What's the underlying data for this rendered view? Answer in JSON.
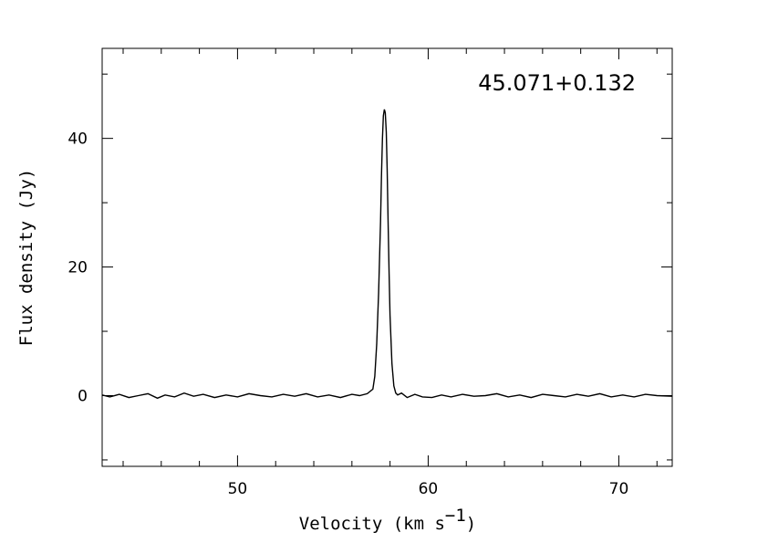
{
  "chart_data": {
    "type": "line",
    "title": "45.071+0.132",
    "xlabel": "Velocity (km s",
    "xlabel_superscript": "−1",
    "xlabel_close": ")",
    "ylabel": "Flux density (Jy)",
    "xlim": [
      42.9,
      72.8
    ],
    "ylim": [
      -11,
      54
    ],
    "xticks": [
      50,
      60,
      70
    ],
    "yticks": [
      0,
      20,
      40
    ],
    "xtick_labels": [
      "50",
      "60",
      "70"
    ],
    "ytick_labels": [
      "0",
      "20",
      "40"
    ],
    "grid": false,
    "series": [
      {
        "line_color": "#000000",
        "x": [
          42.9,
          43.3,
          43.8,
          44.3,
          44.8,
          45.3,
          45.8,
          46.2,
          46.7,
          47.2,
          47.7,
          48.2,
          48.8,
          49.4,
          50.0,
          50.6,
          51.2,
          51.8,
          52.4,
          53.0,
          53.6,
          54.2,
          54.8,
          55.4,
          56.0,
          56.4,
          56.8,
          57.1,
          57.2,
          57.3,
          57.4,
          57.5,
          57.55,
          57.6,
          57.65,
          57.7,
          57.75,
          57.8,
          57.85,
          57.9,
          57.95,
          58.0,
          58.1,
          58.2,
          58.3,
          58.4,
          58.6,
          58.9,
          59.3,
          59.7,
          60.2,
          60.7,
          61.2,
          61.8,
          62.4,
          63.0,
          63.6,
          64.2,
          64.8,
          65.4,
          66.0,
          66.6,
          67.2,
          67.8,
          68.4,
          69.0,
          69.6,
          70.2,
          70.8,
          71.4,
          72.0,
          72.8
        ],
        "y": [
          0.1,
          -0.2,
          0.2,
          -0.3,
          0.0,
          0.3,
          -0.4,
          0.1,
          -0.2,
          0.4,
          -0.1,
          0.2,
          -0.3,
          0.1,
          -0.2,
          0.3,
          0.0,
          -0.2,
          0.2,
          -0.1,
          0.3,
          -0.2,
          0.1,
          -0.3,
          0.2,
          0.0,
          0.3,
          1.0,
          3.0,
          8.0,
          16.0,
          27.0,
          34.0,
          40.0,
          43.5,
          44.5,
          44.0,
          41.0,
          35.0,
          27.0,
          19.0,
          12.5,
          5.0,
          1.5,
          0.4,
          0.1,
          0.4,
          -0.3,
          0.2,
          -0.2,
          -0.3,
          0.1,
          -0.2,
          0.2,
          -0.1,
          0.0,
          0.3,
          -0.2,
          0.1,
          -0.3,
          0.2,
          0.0,
          -0.2,
          0.2,
          -0.1,
          0.3,
          -0.2,
          0.1,
          -0.2,
          0.2,
          0.0,
          -0.1
        ]
      }
    ]
  }
}
